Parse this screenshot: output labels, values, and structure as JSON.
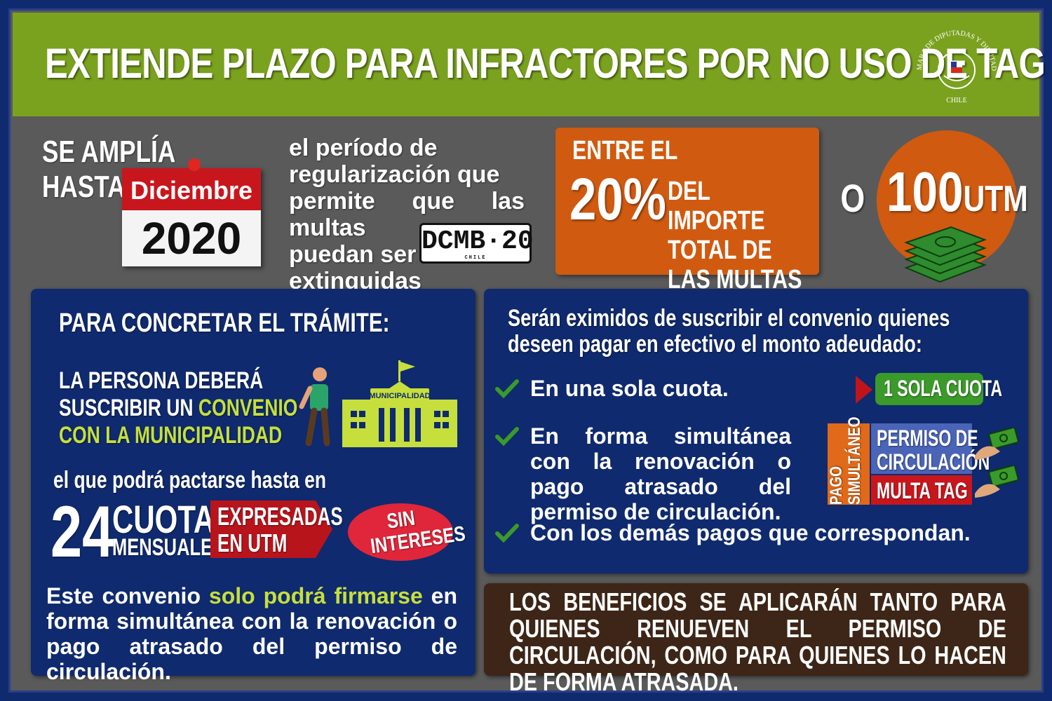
{
  "header": {
    "title": "EXTIENDE PLAZO PARA INFRACTORES POR NO USO DE TAG",
    "seal_text_top": "CÁMARA DE DIPUTADAS Y DIPUTADOS",
    "seal_text_bottom": "CHILE"
  },
  "extension": {
    "line1": "SE AMPLÍA",
    "line2": "HASTA",
    "month": "Diciembre",
    "year": "2020",
    "period_lines": [
      "el período de",
      "regularización que",
      "permite que las multas",
      "puedan ser",
      "extinguidas"
    ],
    "plate": "DCMB·20",
    "plate_country": "CHILE"
  },
  "amount": {
    "entre": "ENTRE EL",
    "percent": "20%",
    "importe": "DEL IMPORTE TOTAL DE LAS MULTAS",
    "or": "O",
    "utm_value": "100",
    "utm_unit": "UTM"
  },
  "tramite": {
    "heading": "PARA CONCRETAR EL TRÁMITE:",
    "line1": "LA PERSONA DEBERÁ",
    "line2a": "SUSCRIBIR UN ",
    "line2b": "CONVENIO",
    "line3": "CON LA MUNICIPALIDAD",
    "municipality_label": "MUNICIPALIDAD",
    "pactar": "el que podrá pactarse hasta en",
    "installments": "24",
    "cuotas": "CUOTAS",
    "mensuales": "MENSUALES",
    "expresadas": "EXPRESADAS",
    "en_utm": "EN UTM",
    "sin": "SIN",
    "intereses": "INTERESES",
    "convenio_a": "Este convenio ",
    "convenio_b": "solo podrá firmarse",
    "convenio_c": " en forma simultánea con la renovación o pago atrasado del permiso de circulación."
  },
  "exemptions": {
    "intro_line1": "Serán eximidos de suscribir el convenio quienes",
    "intro_line2": "deseen pagar en efectivo el monto adeudado:",
    "items": [
      "En una sola cuota.",
      "En forma simultánea con la renovación o pago atrasado del permiso de circulación.",
      "Con los demás pagos que correspondan."
    ],
    "sola_cuota": "1 SOLA CUOTA",
    "pago": "PAGO",
    "simultaneo": "SIMULTÁNEO",
    "permiso_line1": "PERMISO DE",
    "permiso_line2": "CIRCULACIÓN",
    "multa": "MULTA TAG"
  },
  "benefits": {
    "text": "LOS BENEFICIOS SE APLICARÁN TANTO PARA QUIENES RENUEVEN EL PERMISO DE CIRCULACIÓN, COMO PARA QUIENES LO HACEN DE FORMA ATRASADA."
  },
  "colors": {
    "header_green": "#7aa21e",
    "orange": "#d05a10",
    "navy": "#0f2a6e",
    "red": "#c8161d",
    "lime": "#c6df3c",
    "check_green": "#3a9a2a",
    "brown": "#3d2617"
  },
  "icons": [
    "chile-seal-icon",
    "calendar-pin-icon",
    "license-plate-icon",
    "money-stack-icon",
    "person-walking-icon",
    "municipality-building-icon",
    "check-icon",
    "hand-money-icon"
  ]
}
